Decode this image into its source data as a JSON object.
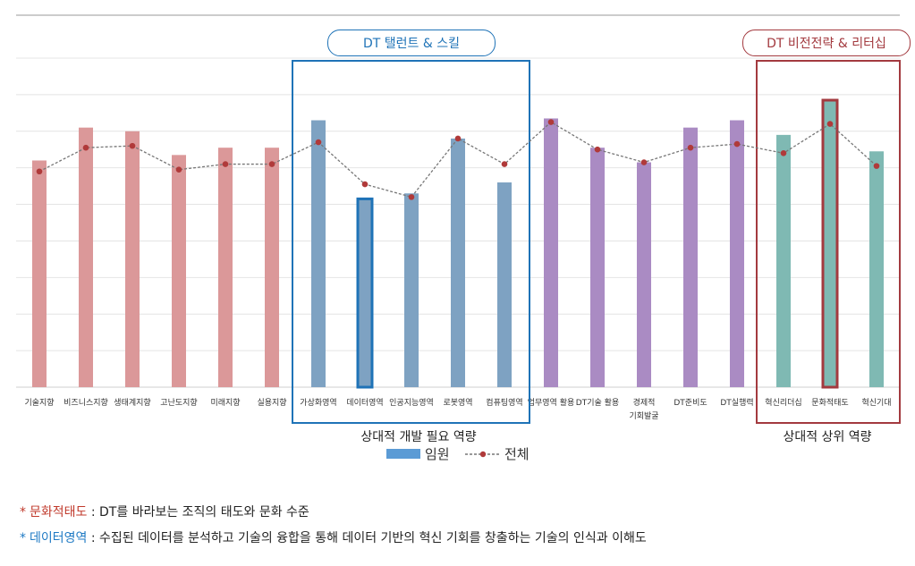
{
  "badges": {
    "talent": "DT 탤런트 & 스킬",
    "vision": "DT 비전전략 & 리터십"
  },
  "notes": [
    {
      "term": "문화적태도",
      "colon": " : ",
      "text": "DT를 바라보는 조직의 태도와 문화 수준",
      "color": "#c0392b"
    },
    {
      "term": "데이터영역",
      "colon": " : ",
      "text": "수집된 데이터를 분석하고 기술의 융합을 통해 데이터 기반의 혁신 기회를 창출하는 기술의 인식과 이해도",
      "color": "#1f7ac4"
    }
  ],
  "colors": {
    "group1": "#db9899",
    "group2": "#7ea2c2",
    "group3": "#aa8bc3",
    "group4": "#7fb9b3",
    "box_blue": "#1f73b7",
    "box_red": "#a33a3f",
    "legend_bar": "#5b9bd5",
    "line": "#777777",
    "marker": "#b03a3a",
    "grid": "#e4e4e4"
  },
  "chart_data": {
    "type": "bar",
    "title": "",
    "ylim": [
      0,
      9
    ],
    "grid": true,
    "categories": [
      "기술지향",
      "비즈니스지향",
      "생태계지향",
      "고난도지향",
      "미래지향",
      "실용지향",
      "가상화영역",
      "데이터영역",
      "인공지능영역",
      "로봇영역",
      "컴퓨팅영역",
      "업무영역 활용",
      "DT기술 활용",
      "경제적\n기회발굴",
      "DT준비도",
      "DT실행력",
      "혁신리더십",
      "문화적태도",
      "혁신기대"
    ],
    "groups": [
      0,
      0,
      0,
      0,
      0,
      0,
      1,
      1,
      1,
      1,
      1,
      2,
      2,
      2,
      2,
      2,
      3,
      3,
      3
    ],
    "highlighted": [
      "데이터영역",
      "문화적태도"
    ],
    "series": [
      {
        "name": "임원",
        "type": "bar",
        "values": [
          6.2,
          7.1,
          7.0,
          6.35,
          6.55,
          6.55,
          7.3,
          5.15,
          5.3,
          6.8,
          5.6,
          7.35,
          6.55,
          6.15,
          7.1,
          7.3,
          6.9,
          7.85,
          6.45
        ]
      },
      {
        "name": "전체",
        "type": "line",
        "values": [
          5.9,
          6.55,
          6.6,
          5.95,
          6.1,
          6.1,
          6.7,
          5.55,
          5.2,
          6.8,
          6.1,
          7.25,
          6.5,
          6.15,
          6.55,
          6.65,
          6.4,
          7.2,
          6.05
        ]
      }
    ],
    "group_labels": [
      "상대적 개발 필요 역량",
      "상대적 상위 역량"
    ],
    "legend": [
      "임원",
      "전체"
    ]
  }
}
